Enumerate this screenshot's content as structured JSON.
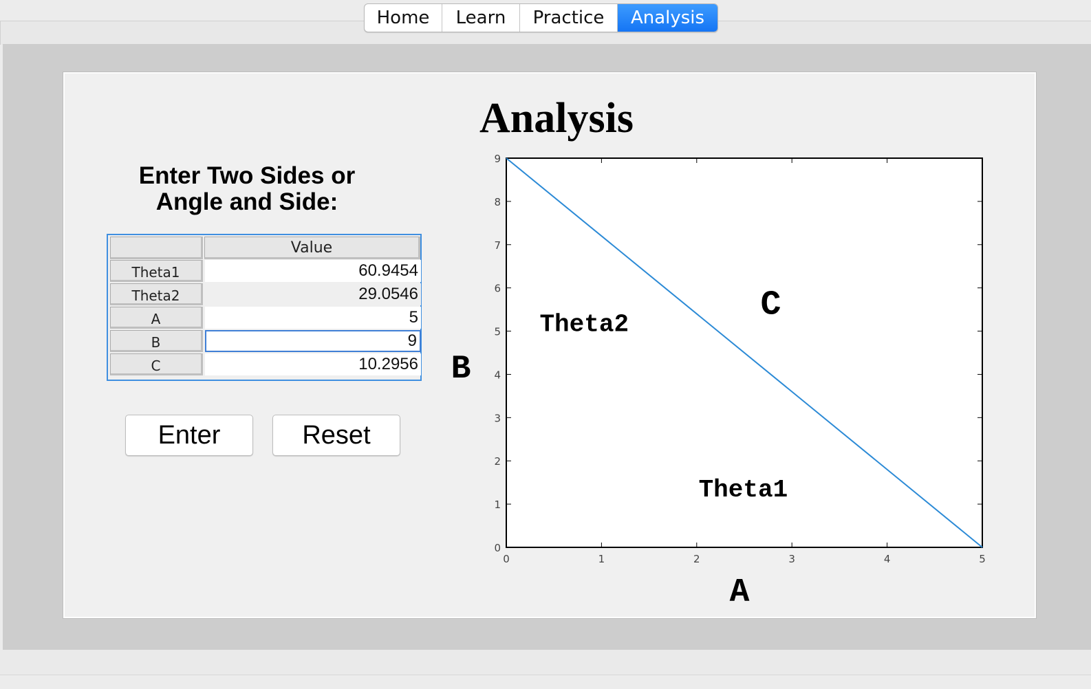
{
  "tabs": [
    {
      "label": "Home",
      "active": false
    },
    {
      "label": "Learn",
      "active": false
    },
    {
      "label": "Practice",
      "active": false
    },
    {
      "label": "Analysis",
      "active": true
    }
  ],
  "page": {
    "title": "Analysis",
    "instructions_line1": "Enter Two Sides or",
    "instructions_line2": "Angle and Side:"
  },
  "table": {
    "column_header": "Value",
    "rows": [
      {
        "label": "Theta1",
        "value": "60.9454"
      },
      {
        "label": "Theta2",
        "value": "29.0546"
      },
      {
        "label": "A",
        "value": "5"
      },
      {
        "label": "B",
        "value": "9"
      },
      {
        "label": "C",
        "value": "10.2956"
      }
    ]
  },
  "buttons": {
    "enter": "Enter",
    "reset": "Reset"
  },
  "colors": {
    "accent": "#1b7cf5",
    "line": "#2b8ad6"
  },
  "chart_data": {
    "type": "line",
    "series": [
      {
        "x": [
          0,
          5
        ],
        "y": [
          9,
          0
        ]
      }
    ],
    "xlim": [
      0,
      5
    ],
    "ylim": [
      0,
      9
    ],
    "xticks": [
      0,
      1,
      2,
      3,
      4,
      5
    ],
    "yticks": [
      0,
      1,
      2,
      3,
      4,
      5,
      6,
      7,
      8,
      9
    ],
    "xlabel": "A",
    "ylabel": "B",
    "annotations": [
      {
        "text": "C",
        "x": 2.67,
        "y": 5.4
      },
      {
        "text": "Theta2",
        "x": 0.35,
        "y": 5.0
      },
      {
        "text": "Theta1",
        "x": 2.02,
        "y": 1.18
      }
    ],
    "grid": false
  }
}
